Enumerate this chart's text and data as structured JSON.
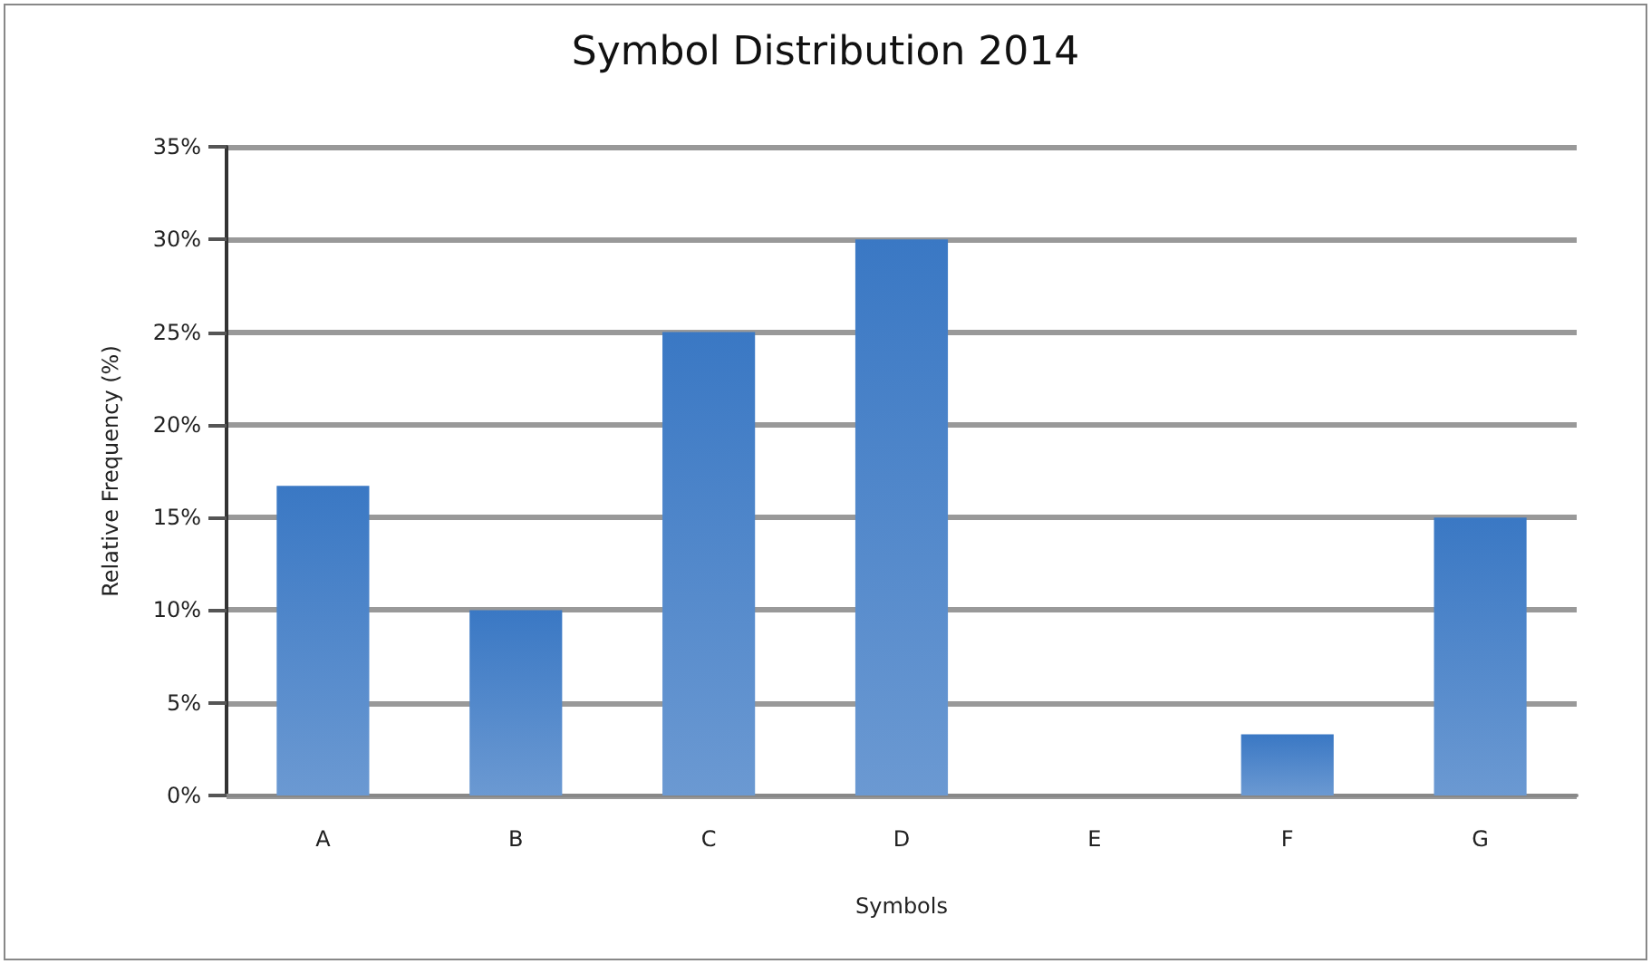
{
  "chart_data": {
    "type": "bar",
    "title": "Symbol Distribution 2014",
    "xlabel": "Symbols",
    "ylabel": "Relative Frequency (%)",
    "categories": [
      "A",
      "B",
      "C",
      "D",
      "E",
      "F",
      "G"
    ],
    "values": [
      16.7,
      10,
      25,
      30,
      0,
      3.3,
      15
    ],
    "color": "#3a78c4",
    "ylim": [
      0,
      35
    ],
    "yticks": [
      {
        "value": 0,
        "label": "0%"
      },
      {
        "value": 5,
        "label": "5%"
      },
      {
        "value": 10,
        "label": "10%"
      },
      {
        "value": 15,
        "label": "15%"
      },
      {
        "value": 20,
        "label": "20%"
      },
      {
        "value": 25,
        "label": "25%"
      },
      {
        "value": 30,
        "label": "30%"
      },
      {
        "value": 35,
        "label": "35%"
      }
    ],
    "grid": "y"
  }
}
